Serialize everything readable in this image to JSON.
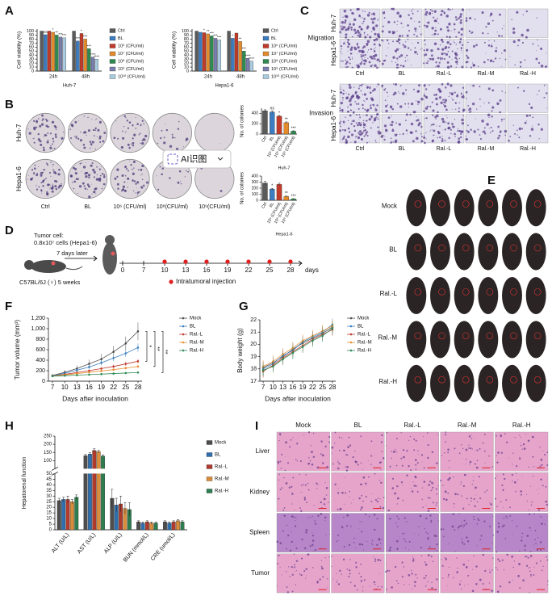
{
  "chart_data": [
    {
      "type": "grouped-bar",
      "panel": "A",
      "title": "Huh-7",
      "ylabel": "Cell viability (%)",
      "categories": [
        "24h",
        "48h"
      ],
      "ylim": [
        0,
        105
      ],
      "yticks": [
        0,
        10,
        20,
        30,
        40,
        50,
        60,
        70,
        80,
        90,
        100
      ],
      "series": [
        {
          "name": "Ctrl",
          "color": "#5a5a5a",
          "values": [
            100,
            100
          ]
        },
        {
          "name": "BL",
          "color": "#3c7cc0",
          "values": [
            91,
            75
          ],
          "sig": [
            "ns",
            "***"
          ]
        },
        {
          "name": "10⁶ (CFU/ml)",
          "color": "#c23b2a",
          "values": [
            100,
            94
          ],
          "sig": [
            null,
            "*"
          ]
        },
        {
          "name": "10⁷ (CFU/ml)",
          "color": "#e38b2b",
          "values": [
            97,
            80
          ],
          "sig": [
            "*",
            "***"
          ]
        },
        {
          "name": "10⁸ (CFU/ml)",
          "color": "#2e8b4f",
          "values": [
            90,
            56
          ],
          "sig": [
            "**",
            "***"
          ]
        },
        {
          "name": "10⁹ (CFU/ml)",
          "color": "#7b7fb0",
          "values": [
            85,
            35
          ],
          "sig": [
            "***",
            "****"
          ]
        },
        {
          "name": "10¹⁰ (CFU/ml)",
          "color": "#a9cbe0",
          "values": [
            83,
            30
          ],
          "sig": [
            "***",
            "****"
          ]
        }
      ]
    },
    {
      "type": "grouped-bar",
      "title": "Hepa1-6",
      "ylabel": "Cell viability (%)",
      "categories": [
        "24h",
        "48h"
      ],
      "ylim": [
        0,
        105
      ],
      "yticks": [
        0,
        10,
        20,
        30,
        40,
        50,
        60,
        70,
        80,
        90,
        100
      ],
      "series": [
        {
          "name": "Ctrl",
          "color": "#5a5a5a",
          "values": [
            100,
            100
          ]
        },
        {
          "name": "BL",
          "color": "#3c7cc0",
          "values": [
            97,
            82
          ],
          "sig": [
            null,
            "*"
          ]
        },
        {
          "name": "10⁶ (CFU/ml)",
          "color": "#c23b2a",
          "values": [
            96,
            95
          ],
          "sig": [
            "*",
            null
          ]
        },
        {
          "name": "10⁷ (CFU/ml)",
          "color": "#e38b2b",
          "values": [
            93,
            74
          ],
          "sig": [
            "**",
            "**"
          ]
        },
        {
          "name": "10⁸ (CFU/ml)",
          "color": "#2e8b4f",
          "values": [
            88,
            50
          ],
          "sig": [
            "***",
            "***"
          ]
        },
        {
          "name": "10⁹ (CFU/ml)",
          "color": "#7b7fb0",
          "values": [
            82,
            32
          ],
          "sig": [
            "***",
            "****"
          ]
        },
        {
          "name": "10¹⁰ (CFU/ml)",
          "color": "#a9cbe0",
          "values": [
            78,
            25
          ],
          "sig": [
            "***",
            "****"
          ]
        }
      ]
    },
    {
      "type": "image-grid",
      "panel": "B",
      "rows": [
        "Huh-7",
        "Hepa1-6"
      ],
      "columns": [
        "Ctrl",
        "BL",
        "10⁶ (CFU/ml)",
        "10⁸(CFU/ml)",
        "10⁹(CFU/ml)"
      ],
      "overlay": "AI识图"
    },
    {
      "type": "bar",
      "title": "Huh-7",
      "ylabel": "No. of colonies",
      "categories": [
        "Ctrl",
        "BL",
        "10⁶ (CFU/ml)",
        "10⁸ (CFU/ml)",
        "10⁹ (CFU/ml)"
      ],
      "values": [
        450,
        425,
        345,
        220,
        55
      ],
      "errors": [
        20,
        25,
        15,
        15,
        8
      ],
      "sig": [
        null,
        "ns",
        "*",
        "**",
        "***"
      ],
      "colors": [
        "#5a5a5a",
        "#3c7cc0",
        "#c23b2a",
        "#e38b2b",
        "#2e8b4f"
      ],
      "ylim": [
        0,
        500
      ],
      "yticks": [
        0,
        200,
        400
      ]
    },
    {
      "type": "bar",
      "title": "Hepa1-6",
      "ylabel": "No. of colonies",
      "categories": [
        "Ctrl",
        "BL",
        "10⁶ (CFU/ml)",
        "10⁸ (CFU/ml)",
        "10⁹ (CFU/ml)"
      ],
      "values": [
        285,
        185,
        262,
        62,
        22
      ],
      "errors": [
        25,
        12,
        20,
        8,
        5
      ],
      "sig": [
        null,
        "*",
        null,
        "**",
        "***"
      ],
      "colors": [
        "#5a5a5a",
        "#3c7cc0",
        "#c23b2a",
        "#e38b2b",
        "#2e8b4f"
      ],
      "ylim": [
        0,
        400
      ],
      "yticks": [
        0,
        100,
        200,
        300,
        400
      ]
    },
    {
      "type": "image-grid",
      "panel": "C",
      "sections": [
        {
          "name": "Migration",
          "rows": [
            "Huh-7",
            "Hepa1-6"
          ],
          "columns": [
            "Ctrl",
            "BL",
            "Ral.-L",
            "Ral.-M",
            "Ral.-H"
          ]
        },
        {
          "name": "Invasion",
          "rows": [
            "Huh-7",
            "Hepa1-6"
          ],
          "columns": [
            "Ctrl",
            "BL",
            "Ral.-L",
            "Ral.-M",
            "Ral.-H"
          ]
        }
      ]
    },
    {
      "type": "timeline",
      "panel": "D",
      "notes": [
        "Tumor cell:",
        "0.8x10⁷ cells (Hepa1-6)"
      ],
      "arrow_label": "7 days later",
      "mouse_label": "C57BL/6J (♀) 5 weeks",
      "days": [
        0,
        7,
        10,
        13,
        16,
        19,
        22,
        25,
        28
      ],
      "unit": "days",
      "injection_days": [
        10,
        13,
        16,
        19,
        22,
        25,
        28
      ],
      "legend": "Intratumoral injection"
    },
    {
      "type": "image-grid",
      "panel": "E",
      "rows": [
        "Mock",
        "BL",
        "Ral.-L",
        "Ral.-M",
        "Ral.-H"
      ]
    },
    {
      "type": "line",
      "panel": "F",
      "ylabel": "Tumor volume (mm³)",
      "xlabel": "Days after inoculation",
      "x": [
        7,
        10,
        13,
        16,
        19,
        22,
        25,
        28
      ],
      "xlim": [
        6,
        29
      ],
      "xticks": [
        7,
        10,
        13,
        16,
        19,
        22,
        25,
        28
      ],
      "ylim": [
        0,
        1200
      ],
      "yticks": [
        0,
        200,
        400,
        600,
        800,
        {
          "value": 1000,
          "label": "1,000"
        },
        {
          "value": 1200,
          "label": "1,200"
        }
      ],
      "series": [
        {
          "name": "Mock",
          "color": "#4d4d4d",
          "values": [
            110,
            170,
            240,
            330,
            420,
            560,
            720,
            950
          ],
          "errors": [
            20,
            40,
            60,
            80,
            100,
            110,
            130,
            170
          ]
        },
        {
          "name": "BL",
          "color": "#3a7ebf",
          "values": [
            105,
            150,
            210,
            270,
            350,
            440,
            530,
            640
          ],
          "errors": [
            15,
            25,
            35,
            40,
            50,
            60,
            70,
            80
          ]
        },
        {
          "name": "Ral.-L",
          "color": "#c0392b",
          "values": [
            100,
            130,
            165,
            200,
            240,
            280,
            330,
            380
          ],
          "errors": [
            10,
            15,
            20,
            25,
            30,
            35,
            40,
            45
          ]
        },
        {
          "name": "Ral.-M",
          "color": "#e69138",
          "values": [
            100,
            120,
            145,
            170,
            195,
            220,
            250,
            280
          ],
          "errors": [
            10,
            12,
            15,
            18,
            20,
            25,
            28,
            30
          ]
        },
        {
          "name": "Ral.-H",
          "color": "#2e8b57",
          "values": [
            95,
            105,
            115,
            125,
            135,
            145,
            155,
            165
          ],
          "errors": [
            8,
            10,
            10,
            12,
            12,
            15,
            15,
            18
          ]
        }
      ],
      "annotations": [
        "*",
        "**",
        "**"
      ]
    },
    {
      "type": "line",
      "panel": "G",
      "ylabel": "Body weight (g)",
      "xlabel": "Days after inoculation",
      "x": [
        7,
        10,
        13,
        16,
        19,
        22,
        25,
        28
      ],
      "xlim": [
        6,
        29
      ],
      "xticks": [
        7,
        10,
        13,
        16,
        19,
        22,
        25,
        28
      ],
      "ylim": [
        17,
        22
      ],
      "yticks": [
        17,
        18,
        19,
        20,
        21,
        22
      ],
      "series": [
        {
          "name": "Mock",
          "color": "#4d4d4d",
          "values": [
            18.1,
            18.5,
            19.0,
            19.6,
            20.1,
            20.5,
            20.9,
            21.4
          ],
          "errors": [
            0.5,
            0.5,
            0.5,
            0.5,
            0.5,
            0.5,
            0.5,
            0.5
          ]
        },
        {
          "name": "BL",
          "color": "#3a7ebf",
          "values": [
            18.0,
            18.4,
            19.1,
            19.5,
            20.2,
            20.6,
            21.0,
            21.6
          ],
          "errors": [
            0.5,
            0.5,
            0.5,
            0.5,
            0.5,
            0.5,
            0.5,
            0.5
          ]
        },
        {
          "name": "Ral.-L",
          "color": "#c0392b",
          "values": [
            17.8,
            18.3,
            18.9,
            19.4,
            19.9,
            20.4,
            20.8,
            21.2
          ],
          "errors": [
            0.5,
            0.5,
            0.5,
            0.5,
            0.5,
            0.5,
            0.5,
            0.5
          ]
        },
        {
          "name": "Ral.-M",
          "color": "#e69138",
          "values": [
            18.2,
            18.6,
            19.2,
            19.7,
            20.3,
            20.7,
            21.1,
            21.5
          ],
          "errors": [
            0.5,
            0.5,
            0.5,
            0.5,
            0.5,
            0.5,
            0.5,
            0.5
          ]
        },
        {
          "name": "Ral.-H",
          "color": "#2e8b57",
          "values": [
            17.9,
            18.2,
            18.8,
            19.3,
            19.8,
            20.3,
            20.7,
            21.3
          ],
          "errors": [
            0.5,
            0.5,
            0.5,
            0.5,
            0.5,
            0.5,
            0.5,
            0.5
          ]
        }
      ]
    },
    {
      "type": "grouped-bar",
      "panel": "H",
      "ylabel": "Hepatorenal function",
      "categories": [
        "ALT (U/L)",
        "AST (U/L)",
        "ALP (U/L)",
        "BUN (mmol/L)",
        "CRE (umol/L)"
      ],
      "ylim": [
        0,
        250
      ],
      "ybreak": 50,
      "yticks": [
        0,
        5,
        10,
        15,
        20,
        25,
        30,
        35,
        40,
        45,
        50,
        100,
        150,
        200,
        250
      ],
      "series": [
        {
          "name": "Mock",
          "color": "#4d4d4d",
          "values": [
            26,
            130,
            28,
            7,
            7
          ],
          "errors": [
            2,
            8,
            8,
            1,
            1
          ]
        },
        {
          "name": "BL",
          "color": "#2f6fad",
          "values": [
            27,
            140,
            22,
            6,
            6
          ],
          "errors": [
            2,
            8,
            6,
            1,
            1
          ]
        },
        {
          "name": "Ral.-L",
          "color": "#b03a2e",
          "values": [
            27,
            162,
            23,
            7,
            7
          ],
          "errors": [
            3,
            10,
            7,
            1,
            1
          ]
        },
        {
          "name": "Ral.-M",
          "color": "#d98c3a",
          "values": [
            25,
            155,
            19,
            6,
            8
          ],
          "errors": [
            2,
            8,
            5,
            1,
            1
          ]
        },
        {
          "name": "Ral.-H",
          "color": "#2e7d4f",
          "values": [
            29,
            127,
            18,
            6,
            7
          ],
          "errors": [
            2,
            8,
            6,
            1,
            1
          ]
        }
      ]
    },
    {
      "type": "image-grid",
      "panel": "I",
      "rows": [
        "Liver",
        "Kidney",
        "Spleen",
        "Tumor"
      ],
      "columns": [
        "Mock",
        "BL",
        "Ral.-L",
        "Ral.-M",
        "Ral.-H"
      ]
    }
  ]
}
